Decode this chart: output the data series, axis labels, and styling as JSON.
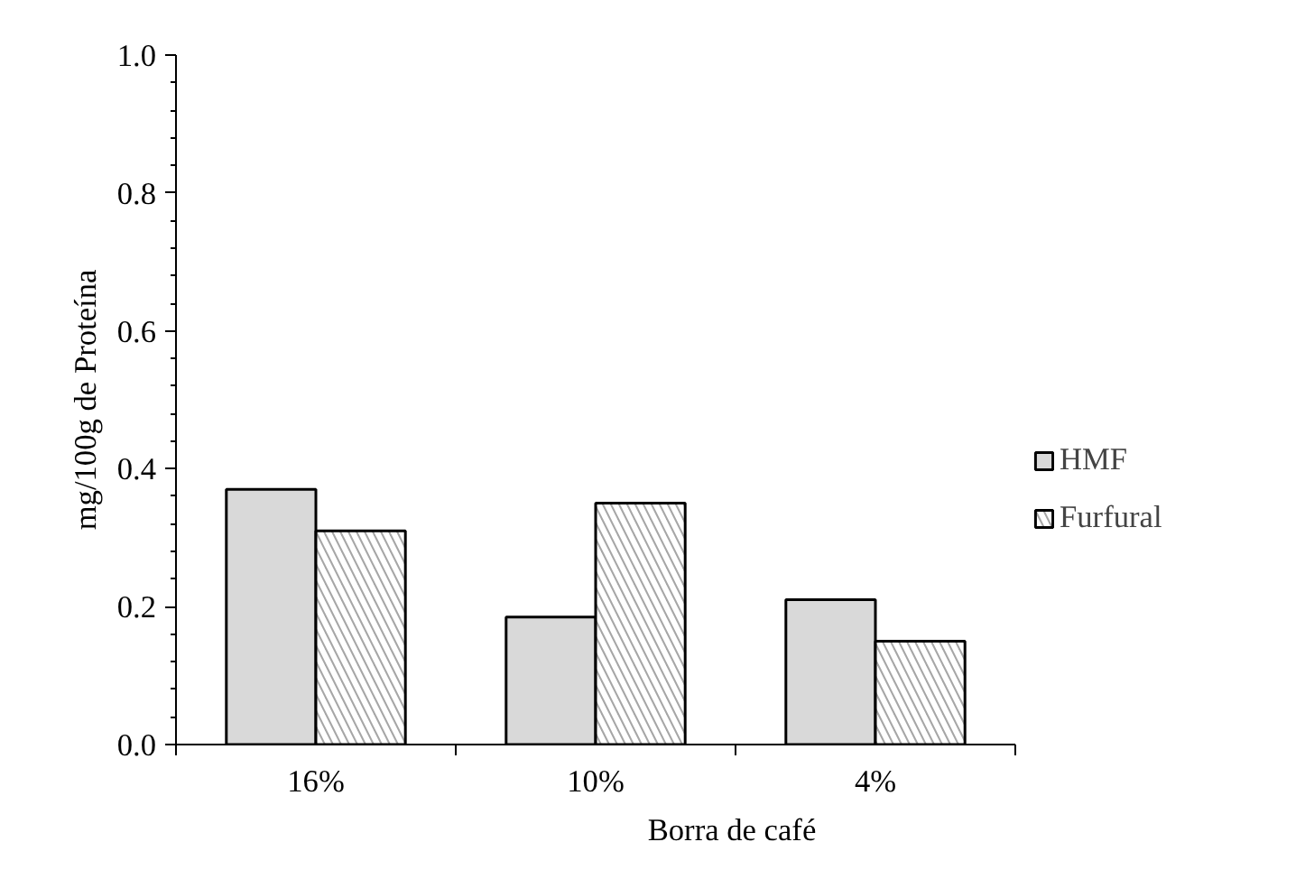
{
  "chart_data": {
    "type": "bar",
    "xlabel": "Borra de café",
    "ylabel": "mg/100g de Proteína",
    "categories": [
      "16%",
      "10%",
      "4%"
    ],
    "series": [
      {
        "name": "HMF",
        "color": "#d9d9d9",
        "values": [
          0.37,
          0.185,
          0.21
        ]
      },
      {
        "name": "Furfural",
        "color": "#a6a6a6",
        "values": [
          0.31,
          0.35,
          0.15
        ]
      }
    ],
    "ylim": [
      0,
      1
    ],
    "yticks": [
      {
        "value": 0,
        "label": "0.0"
      },
      {
        "value": 0.2,
        "label": "0.2"
      },
      {
        "value": 0.4,
        "label": "0.4"
      },
      {
        "value": 0.6,
        "label": "0.6"
      },
      {
        "value": 0.8,
        "label": "0.8"
      },
      {
        "value": 1,
        "label": "1.0"
      }
    ],
    "grid": false,
    "legend": "right"
  }
}
